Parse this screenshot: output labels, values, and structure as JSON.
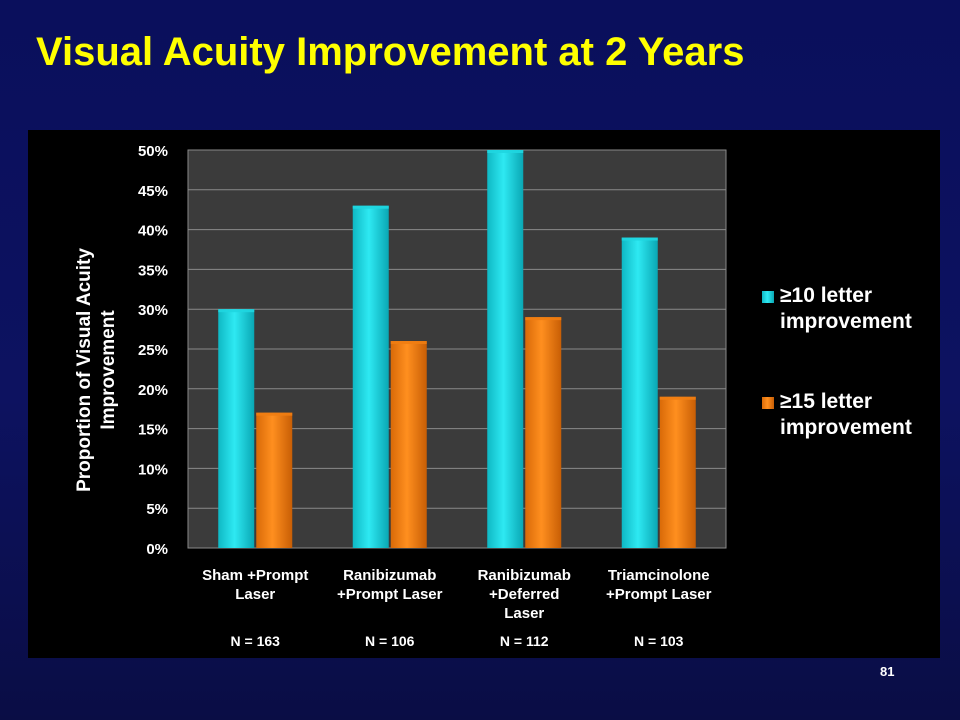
{
  "slide": {
    "title": "Visual Acuity Improvement at 2 Years",
    "page_number": "81"
  },
  "colors": {
    "background": "#0b1058",
    "title": "#ffff00",
    "panel": "#000000",
    "series_10": "#1fd6e0",
    "series_15": "#f07d12"
  },
  "chart_data": {
    "type": "bar",
    "ylabel": "Proportion of Visual Acuity Improvement",
    "ylim": [
      0,
      50
    ],
    "y_ticks": [
      "0%",
      "5%",
      "10%",
      "15%",
      "20%",
      "25%",
      "30%",
      "35%",
      "40%",
      "45%",
      "50%"
    ],
    "grid": true,
    "legend_position": "right",
    "categories": [
      {
        "lines": [
          "Sham +Prompt",
          "Laser"
        ],
        "n": "N = 163"
      },
      {
        "lines": [
          "Ranibizumab",
          "+Prompt Laser"
        ],
        "n": "N = 106"
      },
      {
        "lines": [
          "Ranibizumab",
          "+Deferred",
          "Laser"
        ],
        "n": "N = 112"
      },
      {
        "lines": [
          "Triamcinolone",
          "+Prompt Laser"
        ],
        "n": "N = 103"
      }
    ],
    "series": [
      {
        "name": "≥10 letter improvement",
        "legend_lines": [
          "≥10 letter",
          "improvement"
        ],
        "values": [
          30,
          43,
          50,
          39
        ]
      },
      {
        "name": "≥15 letter improvement",
        "legend_lines": [
          "≥15 letter",
          "improvement"
        ],
        "values": [
          17,
          26,
          29,
          19
        ]
      }
    ]
  }
}
